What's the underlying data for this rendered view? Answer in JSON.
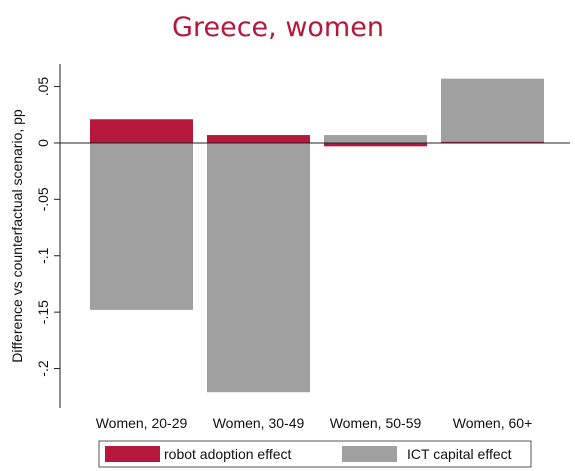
{
  "chart_data": {
    "type": "bar",
    "title": "Greece, women",
    "ylabel": "Difference vs counterfactual scenario, pp",
    "xlabel": "",
    "categories": [
      "Women, 20-29",
      "Women, 30-49",
      "Women, 50-59",
      "Women, 60+"
    ],
    "series": [
      {
        "name": "robot adoption effect",
        "color": "#B5173D",
        "values": [
          0.021,
          0.007,
          -0.003,
          0.001
        ]
      },
      {
        "name": "ICT capital effect",
        "color": "#A0A0A0",
        "values": [
          -0.148,
          -0.221,
          0.007,
          0.057
        ]
      }
    ],
    "ylim": [
      -0.235,
      0.07
    ],
    "yticks": [
      0.05,
      0,
      -0.05,
      -0.1,
      -0.15,
      -0.2
    ],
    "ytick_labels": [
      ".05",
      "0",
      "-.05",
      "-.1",
      "-.15",
      "-.2"
    ],
    "grid": false,
    "legend_position": "bottom",
    "title_color": "#B5173D"
  }
}
